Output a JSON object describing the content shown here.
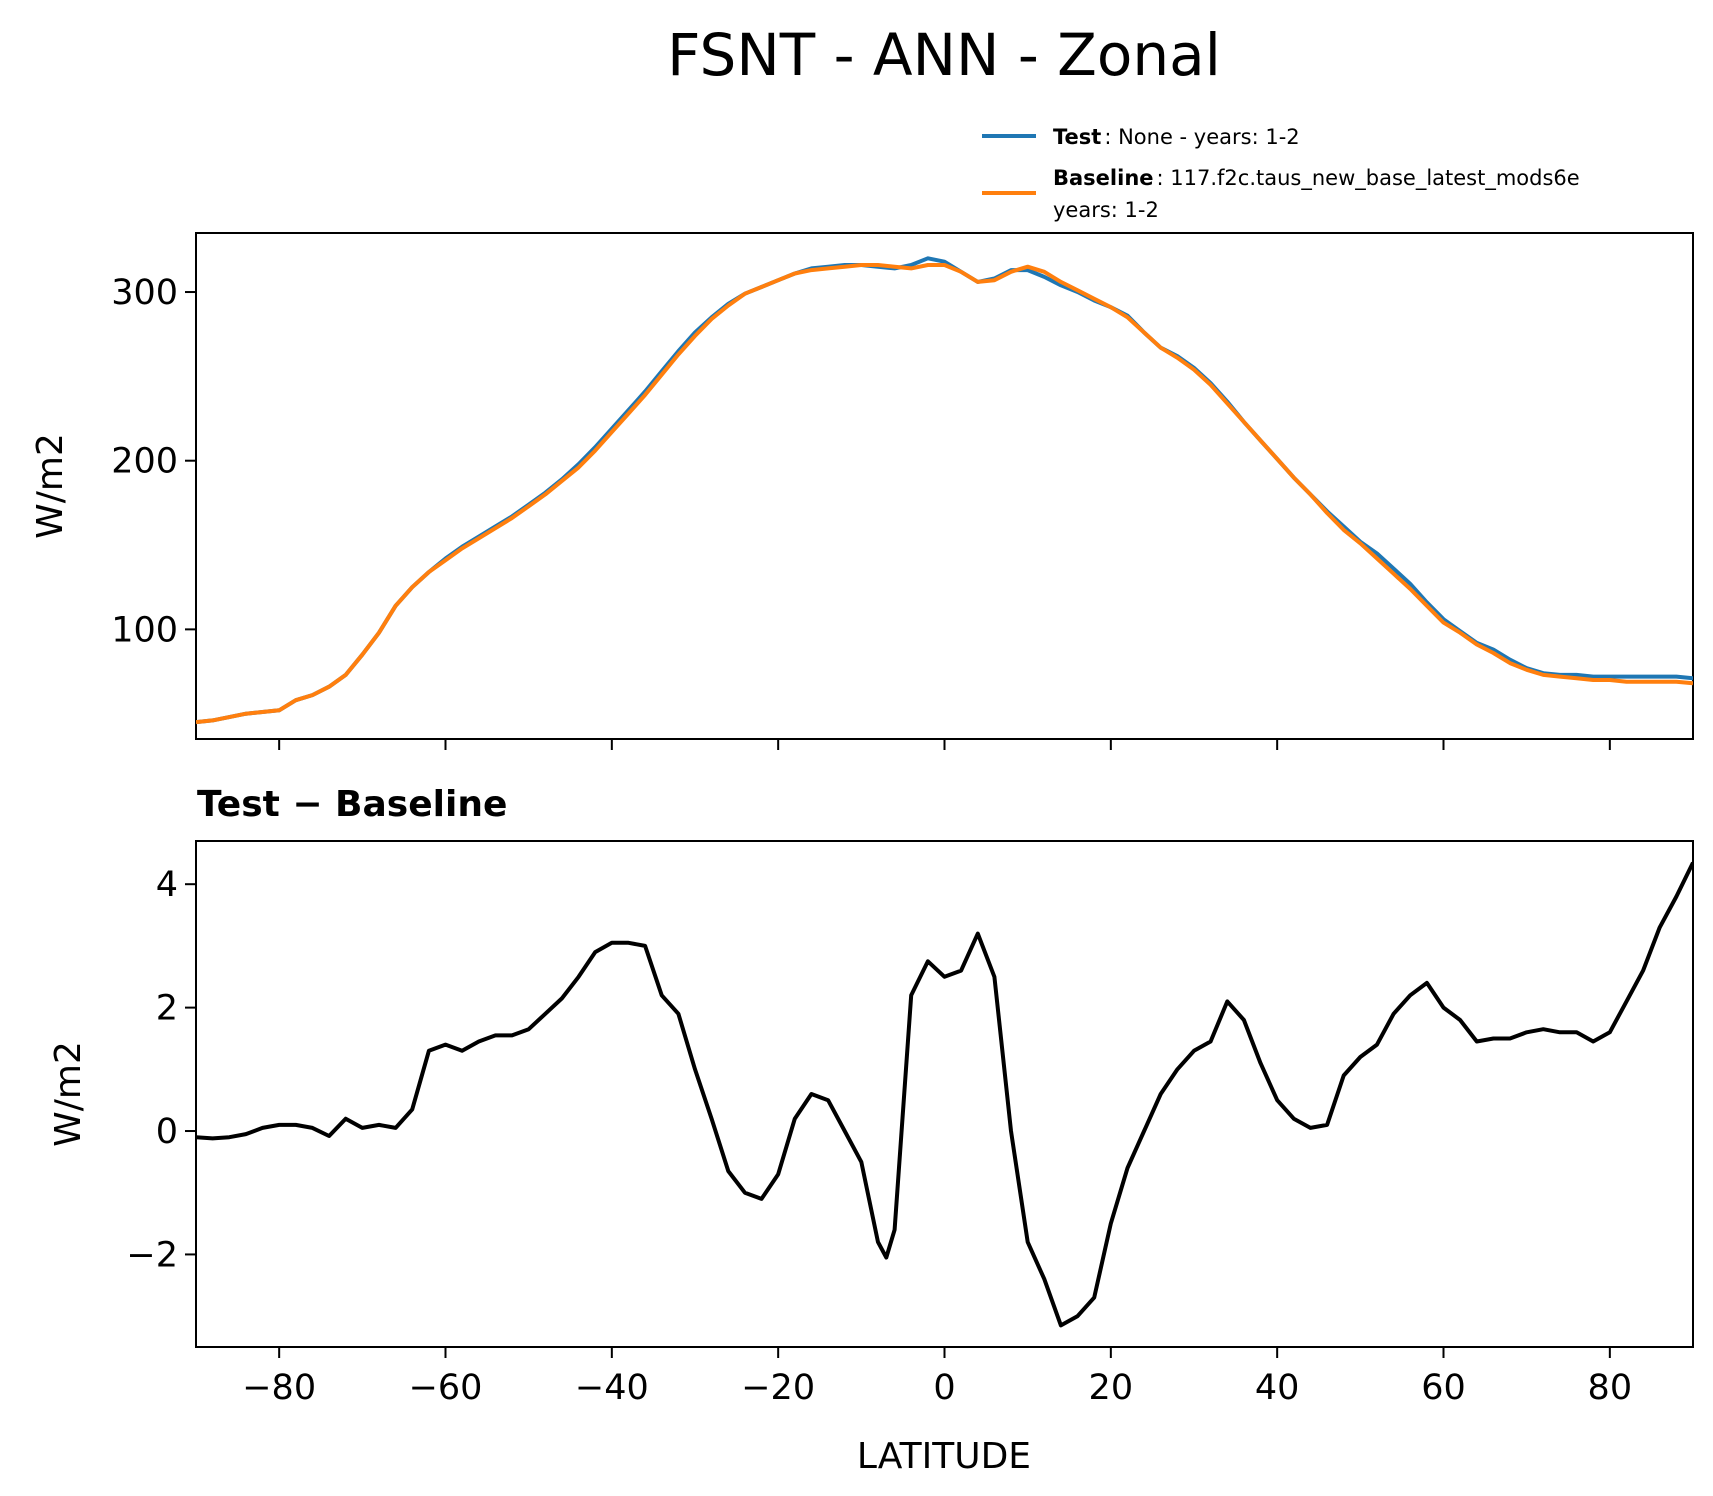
{
  "figure": {
    "title": "FSNT - ANN - Zonal",
    "xlabel": "LATITUDE"
  },
  "legend": {
    "test_key": "Test",
    "test_text": ": None - years: 1-2",
    "baseline_key": "Baseline",
    "baseline_text": ": 117.f2c.taus_new_base_latest_mods6e",
    "baseline_text2": "years: 1-2"
  },
  "colors": {
    "test": "#1f77b4",
    "baseline": "#ff7f0e",
    "diff": "#000000"
  },
  "chart_data": [
    {
      "type": "line",
      "title": "",
      "ylabel": "W/m2",
      "xlim": [
        -90,
        90
      ],
      "ylim": [
        35,
        335
      ],
      "yticks": [
        100,
        200,
        300
      ],
      "xticks": [
        -80,
        -60,
        -40,
        -20,
        0,
        20,
        40,
        60,
        80
      ],
      "series": [
        {
          "name": "Test",
          "x": [
            -90,
            -88,
            -86,
            -84,
            -82,
            -80,
            -78,
            -76,
            -74,
            -72,
            -70,
            -68,
            -66,
            -64,
            -62,
            -60,
            -58,
            -56,
            -54,
            -52,
            -50,
            -48,
            -46,
            -44,
            -42,
            -40,
            -38,
            -36,
            -34,
            -32,
            -30,
            -28,
            -26,
            -24,
            -22,
            -20,
            -18,
            -16,
            -14,
            -12,
            -10,
            -8,
            -6,
            -4,
            -2,
            0,
            2,
            4,
            6,
            8,
            10,
            12,
            14,
            16,
            18,
            20,
            22,
            24,
            26,
            28,
            30,
            32,
            34,
            36,
            38,
            40,
            42,
            44,
            46,
            48,
            50,
            52,
            54,
            56,
            58,
            60,
            62,
            64,
            66,
            68,
            70,
            72,
            74,
            76,
            78,
            80,
            82,
            84,
            86,
            88,
            90
          ],
          "values": [
            45,
            46,
            48,
            50,
            51,
            52,
            58,
            61,
            66,
            73,
            85,
            98,
            114,
            125,
            134,
            142,
            149,
            155,
            161,
            167,
            174,
            181,
            189,
            198,
            208,
            219,
            230,
            241,
            253,
            265,
            276,
            285,
            293,
            299,
            303,
            307,
            311,
            314,
            315,
            316,
            316,
            315,
            314,
            316,
            320,
            318,
            312,
            306,
            308,
            313,
            313,
            309,
            304,
            300,
            295,
            291,
            286,
            276,
            267,
            262,
            255,
            246,
            235,
            223,
            212,
            201,
            190,
            180,
            170,
            161,
            152,
            145,
            136,
            127,
            116,
            106,
            99,
            92,
            88,
            82,
            77,
            74,
            73,
            73,
            72,
            72,
            72,
            72,
            72,
            72,
            71
          ],
          "note_xy_pairs_match": true
        },
        {
          "name": "Baseline",
          "x": [
            -90,
            -88,
            -86,
            -84,
            -82,
            -80,
            -78,
            -76,
            -74,
            -72,
            -70,
            -68,
            -66,
            -64,
            -62,
            -60,
            -58,
            -56,
            -54,
            -52,
            -50,
            -48,
            -46,
            -44,
            -42,
            -40,
            -38,
            -36,
            -34,
            -32,
            -30,
            -28,
            -26,
            -24,
            -22,
            -20,
            -18,
            -16,
            -14,
            -12,
            -10,
            -8,
            -6,
            -4,
            -2,
            0,
            2,
            4,
            6,
            8,
            10,
            12,
            14,
            16,
            18,
            20,
            22,
            24,
            26,
            28,
            30,
            32,
            34,
            36,
            38,
            40,
            42,
            44,
            46,
            48,
            50,
            52,
            54,
            56,
            58,
            60,
            62,
            64,
            66,
            68,
            70,
            72,
            74,
            76,
            78,
            80,
            82,
            84,
            86,
            88,
            90
          ],
          "values": [
            45,
            46,
            48,
            50,
            51,
            52,
            58,
            61,
            66,
            73,
            85,
            98,
            114,
            125,
            134,
            141,
            148,
            154,
            160,
            166,
            173,
            180,
            188,
            196,
            206,
            217,
            228,
            239,
            251,
            263,
            274,
            284,
            292,
            299,
            303,
            307,
            311,
            313,
            314,
            315,
            316,
            316,
            315,
            314,
            316,
            316,
            312,
            306,
            307,
            312,
            315,
            312,
            306,
            301,
            296,
            291,
            285,
            276,
            267,
            261,
            254,
            245,
            234,
            223,
            212,
            201,
            190,
            180,
            169,
            159,
            151,
            142,
            133,
            124,
            114,
            104,
            98,
            91,
            86,
            80,
            76,
            73,
            72,
            71,
            70,
            70,
            69,
            69,
            69,
            69,
            68
          ]
        }
      ]
    },
    {
      "type": "line",
      "title": "Test − Baseline",
      "ylabel": "W/m2",
      "xlim": [
        -90,
        90
      ],
      "ylim": [
        -3.5,
        4.7
      ],
      "yticks": [
        -2,
        0,
        2,
        4
      ],
      "xticks": [
        -80,
        -60,
        -40,
        -20,
        0,
        20,
        40,
        60,
        80
      ],
      "series": [
        {
          "name": "",
          "x": [
            -90,
            -88,
            -86,
            -84,
            -82,
            -80,
            -78,
            -76,
            -74,
            -72,
            -70,
            -68,
            -66,
            -64,
            -62,
            -60,
            -58,
            -56,
            -54,
            -52,
            -50,
            -48,
            -46,
            -44,
            -42,
            -40,
            -38,
            -36,
            -34,
            -32,
            -30,
            -28,
            -26,
            -24,
            -22,
            -20,
            -18,
            -16,
            -14,
            -12,
            -10,
            -8,
            -7,
            -6,
            -4,
            -2,
            0,
            2,
            4,
            6,
            8,
            10,
            12,
            14,
            16,
            18,
            20,
            22,
            24,
            26,
            28,
            30,
            32,
            34,
            36,
            38,
            40,
            42,
            44,
            46,
            48,
            50,
            52,
            54,
            56,
            58,
            60,
            62,
            64,
            66,
            68,
            70,
            72,
            74,
            76,
            78,
            80,
            82,
            84,
            86,
            88,
            90
          ],
          "values": [
            -0.1,
            -0.12,
            -0.1,
            -0.05,
            0.05,
            0.1,
            0.1,
            0.05,
            -0.08,
            0.2,
            0.05,
            0.1,
            0.05,
            0.35,
            1.3,
            1.4,
            1.3,
            1.45,
            1.55,
            1.55,
            1.65,
            1.9,
            2.15,
            2.5,
            2.9,
            3.05,
            3.05,
            3.0,
            2.2,
            1.9,
            1.0,
            0.2,
            -0.65,
            -1.0,
            -1.1,
            -0.7,
            0.2,
            0.6,
            0.5,
            0.0,
            -0.5,
            -1.8,
            -2.05,
            -1.6,
            2.2,
            2.75,
            2.5,
            2.6,
            3.2,
            2.5,
            0.0,
            -1.8,
            -2.4,
            -3.15,
            -3.0,
            -2.7,
            -1.5,
            -0.6,
            0.0,
            0.6,
            1.0,
            1.3,
            1.45,
            2.1,
            1.8,
            1.1,
            0.5,
            0.2,
            0.05,
            0.1,
            0.9,
            1.2,
            1.4,
            1.9,
            2.2,
            2.4,
            2.0,
            1.8,
            1.45,
            1.5,
            1.5,
            1.6,
            1.65,
            1.6,
            1.6,
            1.45,
            1.6,
            2.1,
            2.6,
            3.3,
            3.8,
            4.35
          ]
        }
      ]
    }
  ]
}
